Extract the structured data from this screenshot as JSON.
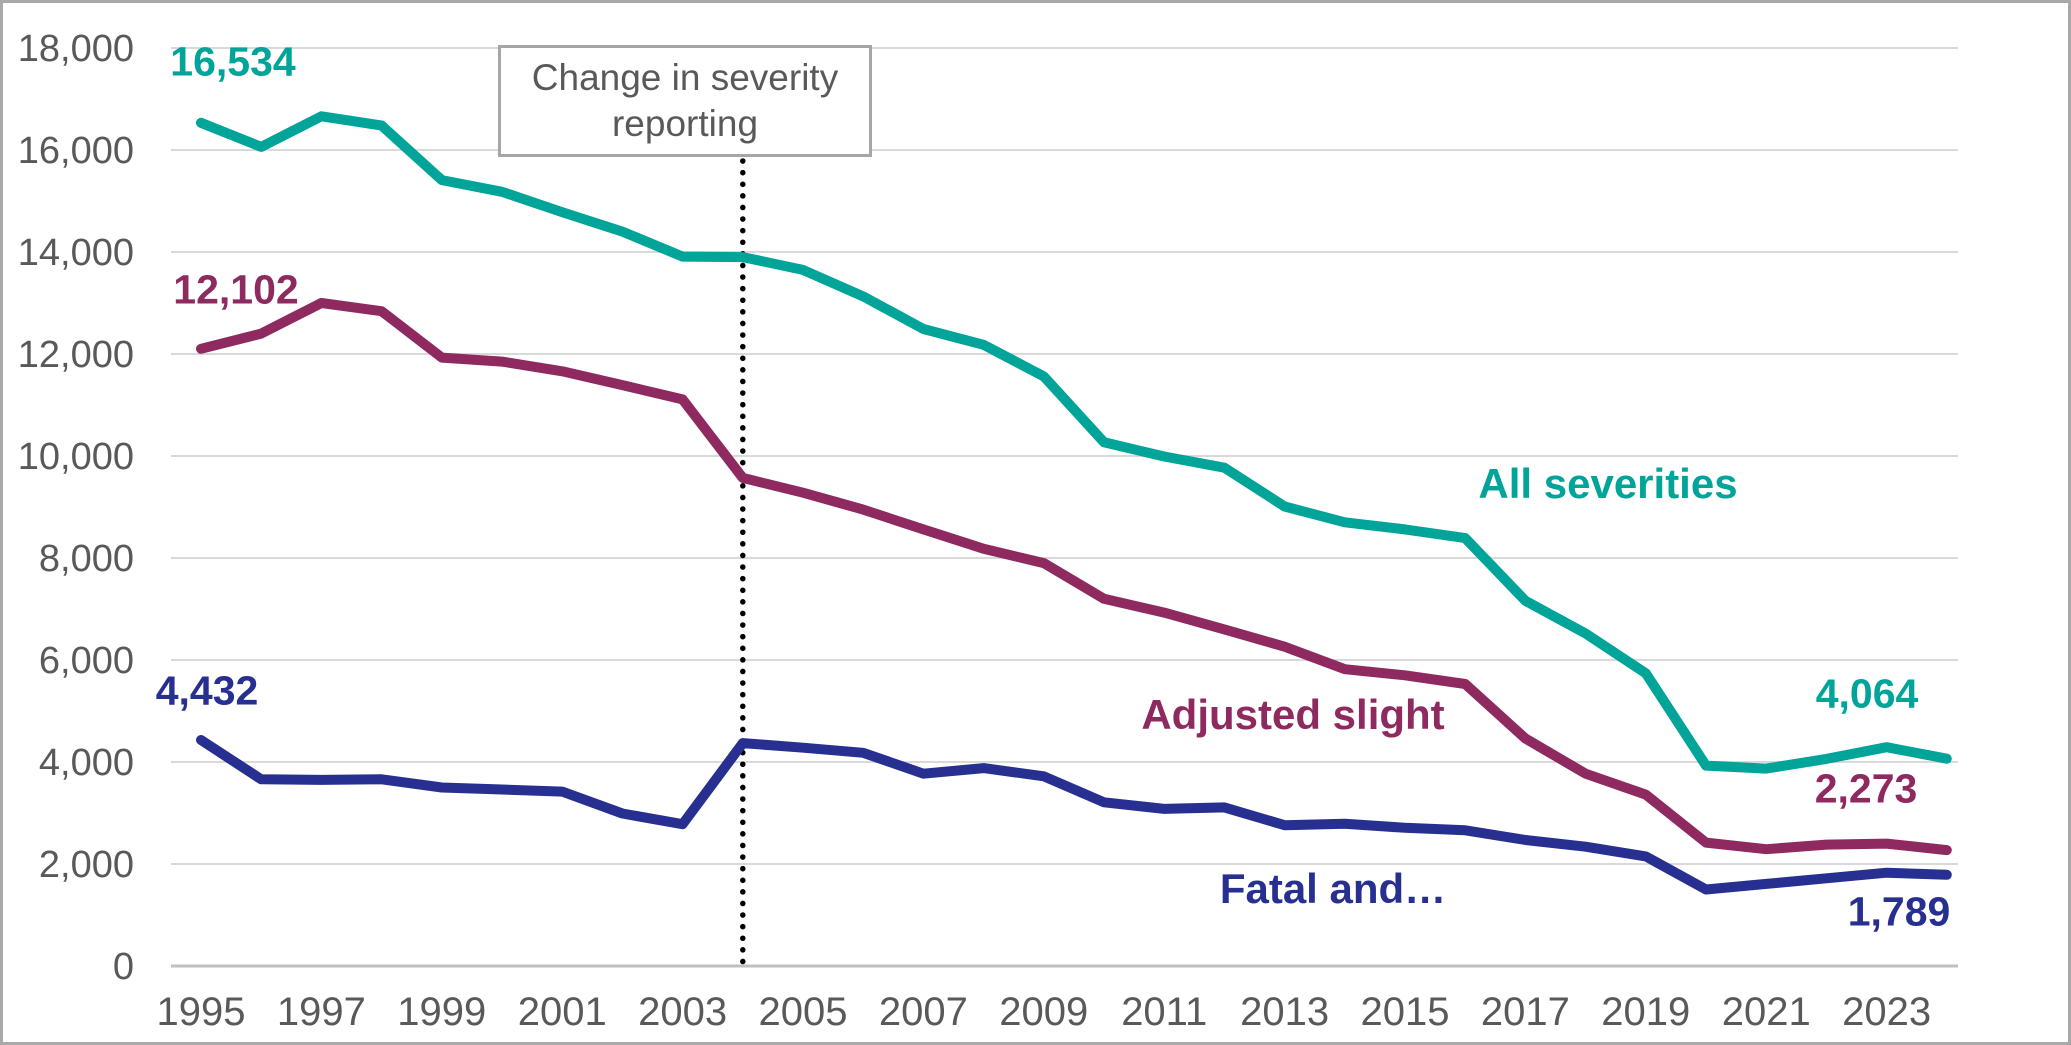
{
  "chart_data": {
    "type": "line",
    "title": "",
    "xlabel": "",
    "ylabel": "",
    "ylim": [
      0,
      18000
    ],
    "grid": "horizontal-only",
    "legend_position": "inline-labels-on-chart",
    "x": [
      1995,
      1996,
      1997,
      1998,
      1999,
      2000,
      2001,
      2002,
      2003,
      2004,
      2005,
      2006,
      2007,
      2008,
      2009,
      2010,
      2011,
      2012,
      2013,
      2014,
      2015,
      2016,
      2017,
      2018,
      2019,
      2020,
      2021,
      2022,
      2023,
      2024
    ],
    "series": [
      {
        "name": "All severities",
        "color": "#00a499",
        "first_point_label": "16,534",
        "last_point_label": "4,064",
        "values": [
          16534,
          16060,
          16660,
          16480,
          15410,
          15180,
          14780,
          14400,
          13910,
          13900,
          13650,
          13130,
          12490,
          12180,
          11560,
          10270,
          9990,
          9770,
          9010,
          8700,
          8560,
          8390,
          7160,
          6520,
          5740,
          3930,
          3870,
          4060,
          4290,
          4064
        ]
      },
      {
        "name": "Adjusted slight",
        "color": "#8e2a5f",
        "first_point_label": "12,102",
        "last_point_label": "2,273",
        "values": [
          12102,
          12400,
          13000,
          12840,
          11930,
          11850,
          11660,
          11390,
          11110,
          9570,
          9280,
          8950,
          8560,
          8180,
          7900,
          7200,
          6930,
          6600,
          6260,
          5820,
          5700,
          5530,
          4460,
          3770,
          3360,
          2420,
          2290,
          2380,
          2400,
          2273
        ]
      },
      {
        "name": "Fatal and…",
        "color": "#272f90",
        "first_point_label": "4,432",
        "last_point_label": "1,789",
        "values": [
          4432,
          3660,
          3650,
          3660,
          3500,
          3460,
          3420,
          2990,
          2780,
          4370,
          4280,
          4180,
          3770,
          3880,
          3720,
          3210,
          3080,
          3110,
          2760,
          2790,
          2710,
          2660,
          2470,
          2340,
          2150,
          1500,
          1610,
          1720,
          1830,
          1789
        ]
      }
    ],
    "y_ticks": [
      "0",
      "2,000",
      "4,000",
      "6,000",
      "8,000",
      "10,000",
      "12,000",
      "14,000",
      "16,000",
      "18,000"
    ],
    "x_ticks": [
      "1995",
      "1997",
      "1999",
      "2001",
      "2003",
      "2005",
      "2007",
      "2009",
      "2011",
      "2013",
      "2015",
      "2017",
      "2019",
      "2021",
      "2023"
    ],
    "annotation": {
      "line1": "Change in severity",
      "line2": "reporting",
      "at_year": 2004,
      "line_style": "dotted-vertical-black"
    }
  },
  "labels": {
    "start_all": "16,534",
    "start_slight": "12,102",
    "start_fatal": "4,432",
    "end_all": "4,064",
    "end_slight": "2,273",
    "end_fatal": "1,789",
    "series_all": "All severities",
    "series_slight": "Adjusted slight",
    "series_fatal": "Fatal and…",
    "annotation_line1": "Change in severity",
    "annotation_line2": "reporting"
  },
  "colors": {
    "all_severities": "#00a499",
    "adjusted_slight": "#8e2a5f",
    "fatal_serious": "#272f90",
    "gridline": "#d9d9d9",
    "axis_line": "#bfbfbf",
    "tick_text": "#595959",
    "annotation_border": "#a6a6a6",
    "frame_border": "#a9a9a9",
    "dotted_line": "#000000"
  }
}
